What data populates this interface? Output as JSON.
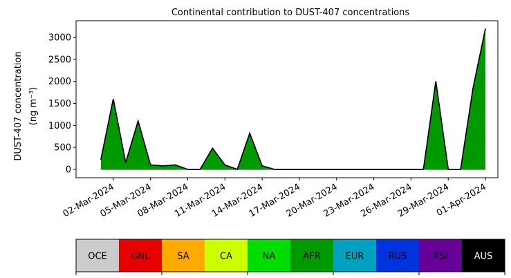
{
  "chart_data": {
    "type": "stacked_area",
    "title": "Continental contribution to DUST-407 concentrations",
    "ylabel": [
      "DUST-407 concentration",
      "(ng m⁻³)"
    ],
    "x": [
      "2024-03-01",
      "2024-03-02",
      "2024-03-03",
      "2024-03-04",
      "2024-03-05",
      "2024-03-06",
      "2024-03-07",
      "2024-03-08",
      "2024-03-09",
      "2024-03-10",
      "2024-03-11",
      "2024-03-12",
      "2024-03-13",
      "2024-03-14",
      "2024-03-15",
      "2024-03-16",
      "2024-03-17",
      "2024-03-18",
      "2024-03-19",
      "2024-03-20",
      "2024-03-21",
      "2024-03-22",
      "2024-03-23",
      "2024-03-24",
      "2024-03-25",
      "2024-03-26",
      "2024-03-27",
      "2024-03-28",
      "2024-03-29",
      "2024-03-30",
      "2024-03-31",
      "2024-04-01"
    ],
    "xlim": [
      "2024-02-28",
      "2024-04-02"
    ],
    "xticks": [
      {
        "value": "2024-03-02",
        "label": "02-Mar-2024"
      },
      {
        "value": "2024-03-05",
        "label": "05-Mar-2024"
      },
      {
        "value": "2024-03-08",
        "label": "08-Mar-2024"
      },
      {
        "value": "2024-03-11",
        "label": "11-Mar-2024"
      },
      {
        "value": "2024-03-14",
        "label": "14-Mar-2024"
      },
      {
        "value": "2024-03-17",
        "label": "17-Mar-2024"
      },
      {
        "value": "2024-03-20",
        "label": "20-Mar-2024"
      },
      {
        "value": "2024-03-23",
        "label": "23-Mar-2024"
      },
      {
        "value": "2024-03-26",
        "label": "26-Mar-2024"
      },
      {
        "value": "2024-03-29",
        "label": "29-Mar-2024"
      },
      {
        "value": "2024-04-01",
        "label": "01-Apr-2024"
      }
    ],
    "ylim": [
      -190,
      3380
    ],
    "yticks": [
      0,
      500,
      1000,
      1500,
      2000,
      2500,
      3000
    ],
    "series": [
      {
        "name": "OCE",
        "color": "#cccccc",
        "values": [
          0,
          0,
          0,
          0,
          0,
          0,
          0,
          0,
          0,
          0,
          0,
          0,
          0,
          0,
          0,
          0,
          0,
          0,
          0,
          0,
          0,
          0,
          0,
          0,
          0,
          0,
          0,
          0,
          0,
          0,
          0,
          0
        ]
      },
      {
        "name": "GNL",
        "color": "#e60000",
        "values": [
          0,
          0,
          0,
          0,
          0,
          0,
          0,
          0,
          0,
          0,
          0,
          0,
          0,
          0,
          0,
          0,
          0,
          0,
          0,
          0,
          0,
          0,
          0,
          0,
          0,
          0,
          0,
          0,
          0,
          0,
          0,
          0
        ]
      },
      {
        "name": "SA",
        "color": "#ffaa00",
        "values": [
          0,
          0,
          0,
          0,
          0,
          0,
          0,
          0,
          0,
          0,
          0,
          0,
          0,
          0,
          0,
          0,
          0,
          0,
          0,
          0,
          0,
          0,
          0,
          0,
          0,
          0,
          0,
          0,
          0,
          0,
          0,
          0
        ]
      },
      {
        "name": "CA",
        "color": "#ccff00",
        "values": [
          0,
          0,
          0,
          0,
          0,
          0,
          0,
          0,
          0,
          0,
          0,
          0,
          0,
          0,
          0,
          0,
          0,
          0,
          0,
          0,
          0,
          0,
          0,
          0,
          0,
          0,
          0,
          0,
          0,
          0,
          0,
          0
        ]
      },
      {
        "name": "NA",
        "color": "#00dd00",
        "values": [
          0,
          0,
          0,
          0,
          0,
          0,
          0,
          0,
          0,
          0,
          0,
          0,
          0,
          0,
          0,
          0,
          0,
          0,
          0,
          0,
          0,
          0,
          0,
          0,
          0,
          0,
          0,
          0,
          0,
          0,
          0,
          0
        ]
      },
      {
        "name": "AFR",
        "color": "#009900",
        "values": [
          220,
          1600,
          150,
          1100,
          100,
          80,
          100,
          0,
          0,
          480,
          100,
          0,
          820,
          80,
          0,
          0,
          0,
          0,
          0,
          0,
          0,
          0,
          0,
          0,
          0,
          0,
          0,
          2000,
          0,
          0,
          1850,
          3200
        ]
      },
      {
        "name": "EUR",
        "color": "#00a0c0",
        "values": [
          0,
          0,
          0,
          0,
          0,
          0,
          0,
          0,
          0,
          0,
          0,
          0,
          0,
          0,
          0,
          0,
          0,
          0,
          0,
          0,
          0,
          0,
          0,
          0,
          0,
          0,
          0,
          0,
          0,
          0,
          0,
          0
        ]
      },
      {
        "name": "RUS",
        "color": "#0033dd",
        "values": [
          0,
          0,
          0,
          0,
          0,
          0,
          0,
          0,
          0,
          0,
          0,
          0,
          0,
          0,
          0,
          0,
          0,
          0,
          0,
          0,
          0,
          0,
          0,
          0,
          0,
          0,
          0,
          0,
          0,
          0,
          0,
          0
        ]
      },
      {
        "name": "ASI",
        "color": "#660099",
        "values": [
          0,
          0,
          0,
          0,
          0,
          0,
          0,
          0,
          0,
          0,
          0,
          0,
          0,
          0,
          0,
          0,
          0,
          0,
          0,
          0,
          0,
          0,
          0,
          0,
          0,
          0,
          0,
          0,
          0,
          0,
          0,
          0
        ]
      },
      {
        "name": "AUS",
        "color": "#000000",
        "values": [
          0,
          0,
          0,
          0,
          0,
          0,
          0,
          0,
          0,
          0,
          0,
          0,
          0,
          0,
          0,
          0,
          0,
          0,
          0,
          0,
          0,
          0,
          0,
          0,
          0,
          0,
          0,
          0,
          0,
          0,
          0,
          0
        ]
      }
    ]
  }
}
